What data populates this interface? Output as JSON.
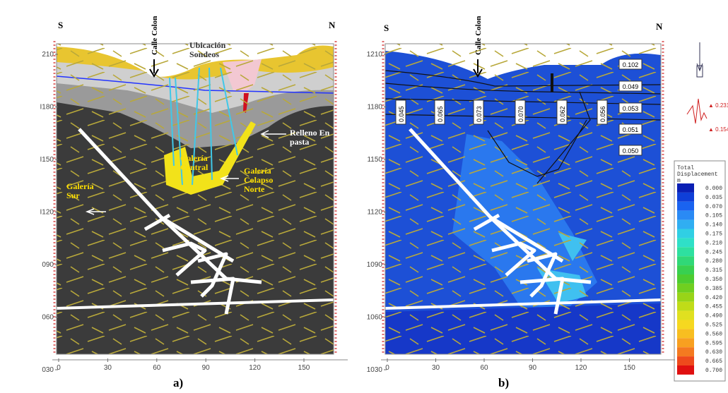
{
  "panels": [
    {
      "letter": "a)",
      "south": "S",
      "north": "N",
      "yticks": [
        "210",
        "I180",
        "I150",
        "I120",
        "090",
        "060",
        "030"
      ],
      "xticks": [
        "0",
        "30",
        "60",
        "90",
        "120",
        "150"
      ],
      "labels": {
        "street": "Calle Colon",
        "boreholes": "Ubicación Sondeos",
        "fill": "Relleno En pasta",
        "central": "Galería Central",
        "south_gallery": "Galería Sur",
        "collapse": "Galería Colapso Norte"
      }
    },
    {
      "letter": "b)",
      "south": "S",
      "north": "N",
      "yticks": [
        "1210",
        "1180",
        "1150",
        "1120",
        "1090",
        "1060",
        "1030"
      ],
      "xticks": [
        "0",
        "30",
        "60",
        "90",
        "120",
        "150"
      ],
      "labels": {
        "street": "Calle Colon"
      },
      "box_values": [
        "0.102",
        "0.049",
        "0.053",
        "0.051",
        "0.050"
      ],
      "vertical_values": [
        "0.045",
        "0.065",
        "0.073",
        "0.070",
        "0.062",
        "0.056"
      ]
    }
  ],
  "side": {
    "max_marker": "▲ 0.231",
    "min_marker": "▲ 0.154"
  },
  "legend": {
    "title": [
      "Total",
      "Displacement",
      "m"
    ],
    "items": [
      {
        "label": "0.000",
        "color": "#0a1fb4"
      },
      {
        "label": "0.035",
        "color": "#0f3fd8"
      },
      {
        "label": "0.070",
        "color": "#1a63f0"
      },
      {
        "label": "0.105",
        "color": "#2a8af5"
      },
      {
        "label": "0.140",
        "color": "#30aef2"
      },
      {
        "label": "0.175",
        "color": "#30cfe4"
      },
      {
        "label": "0.210",
        "color": "#2fe0c8"
      },
      {
        "label": "0.245",
        "color": "#2ee0a0"
      },
      {
        "label": "0.280",
        "color": "#30d878"
      },
      {
        "label": "0.315",
        "color": "#38d050"
      },
      {
        "label": "0.350",
        "color": "#4ccc30"
      },
      {
        "label": "0.385",
        "color": "#70cf20"
      },
      {
        "label": "0.420",
        "color": "#98d418"
      },
      {
        "label": "0.455",
        "color": "#c0dc18"
      },
      {
        "label": "0.490",
        "color": "#e0e020"
      },
      {
        "label": "0.525",
        "color": "#f6d820"
      },
      {
        "label": "0.560",
        "color": "#f8be20"
      },
      {
        "label": "0.595",
        "color": "#f8a020"
      },
      {
        "label": "0.630",
        "color": "#f47a20"
      },
      {
        "label": "0.665",
        "color": "#ee4a1c"
      },
      {
        "label": "0.700",
        "color": "#e01010"
      }
    ]
  }
}
